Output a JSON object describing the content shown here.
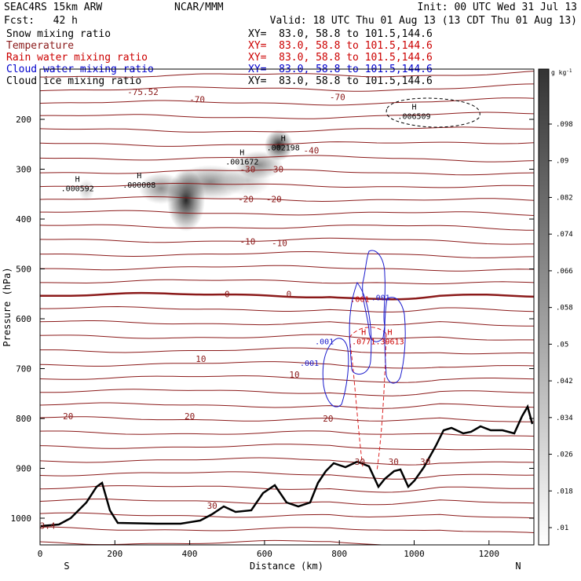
{
  "header": {
    "model": "SEAC4RS 15km ARW",
    "center": "NCAR/MMM",
    "init": "Init: 00 UTC Wed 31 Jul 13",
    "fcst": "Fcst:   42 h",
    "valid": "Valid: 18 UTC Thu 01 Aug 13 (13 CDT Thu 01 Aug 13)"
  },
  "legend": [
    {
      "name": "Snow mixing ratio",
      "xy": "XY=  83.0, 58.8 to 101.5,144.6",
      "color": "#000000"
    },
    {
      "name": "Temperature",
      "xy": "XY=  83.0, 58.8 to 101.5,144.6",
      "color": "#8b1a1a"
    },
    {
      "name": "Rain water mixing ratio",
      "xy": "XY=  83.0, 58.8 to 101.5,144.6",
      "color": "#cc0000"
    },
    {
      "name": "Cloud water mixing ratio",
      "xy": "XY=  83.0, 58.8 to 101.5,144.6",
      "color": "#0000cc"
    },
    {
      "name": "Cloud ice mixing ratio",
      "xy": "XY=  83.0, 58.8 to 101.5,144.6",
      "color": "#000000"
    }
  ],
  "chart_data": {
    "type": "cross-section",
    "xlabel": "Distance (km)",
    "ylabel": "Pressure (hPa)",
    "xlim": [
      0,
      1320
    ],
    "ylim": [
      1050,
      100
    ],
    "x_ticks": [
      "0",
      "200",
      "400",
      "600",
      "800",
      "1000",
      "1200"
    ],
    "y_ticks": [
      "200",
      "300",
      "400",
      "500",
      "600",
      "700",
      "800",
      "900",
      "1000"
    ],
    "left_endpoint": "S",
    "right_endpoint": "N",
    "colorbar": {
      "unit": "g kg",
      "unit_exp": "-1",
      "labels": [
        ".01",
        ".018",
        ".026",
        ".034",
        ".042",
        ".05",
        ".058",
        ".066",
        ".074",
        ".082",
        ".09",
        ".098"
      ]
    },
    "temperature_labels": [
      {
        "text": "-70",
        "x": 420,
        "p": 160
      },
      {
        "text": "-70",
        "x": 795,
        "p": 155
      },
      {
        "text": "-75.52",
        "x": 275,
        "p": 145
      },
      {
        "text": "-40",
        "x": 725,
        "p": 262
      },
      {
        "text": "-30",
        "x": 555,
        "p": 300
      },
      {
        "text": "-30",
        "x": 630,
        "p": 300
      },
      {
        "text": "-20",
        "x": 550,
        "p": 360
      },
      {
        "text": "-20",
        "x": 625,
        "p": 360
      },
      {
        "text": "-10",
        "x": 555,
        "p": 445
      },
      {
        "text": "-10",
        "x": 640,
        "p": 448
      },
      {
        "text": "0",
        "x": 500,
        "p": 550
      },
      {
        "text": "0",
        "x": 665,
        "p": 550
      },
      {
        "text": "10",
        "x": 430,
        "p": 680
      },
      {
        "text": "10",
        "x": 680,
        "p": 712
      },
      {
        "text": "20",
        "x": 75,
        "p": 795
      },
      {
        "text": "20",
        "x": 400,
        "p": 795
      },
      {
        "text": "20",
        "x": 770,
        "p": 800
      },
      {
        "text": "30",
        "x": 460,
        "p": 975
      },
      {
        "text": "30",
        "x": 855,
        "p": 887
      },
      {
        "text": "30",
        "x": 945,
        "p": 887
      },
      {
        "text": "30",
        "x": 1030,
        "p": 887
      },
      {
        "text": "3.4",
        "x": 20,
        "p": 1015
      }
    ],
    "maxima": [
      {
        "mark": "H",
        "value": ".000592",
        "x": 100,
        "p": 325
      },
      {
        "mark": "H",
        "value": ".000008",
        "x": 265,
        "p": 318
      },
      {
        "mark": "H",
        "value": ".001672",
        "x": 540,
        "p": 272
      },
      {
        "mark": "H",
        "value": ".002198",
        "x": 650,
        "p": 243
      },
      {
        "mark": "H",
        "value": ".006509",
        "x": 1000,
        "p": 180
      },
      {
        "mark": "H",
        "value": ".0771",
        "x": 865,
        "p": 632
      },
      {
        "mark": "H",
        "value": ".39613",
        "x": 935,
        "p": 632
      }
    ],
    "cloud_water_labels": [
      {
        "text": ".001",
        "x": 910,
        "p": 557
      },
      {
        "text": ".001",
        "x": 760,
        "p": 645
      },
      {
        "text": ".001",
        "x": 720,
        "p": 688
      }
    ],
    "rain_labels": [
      {
        "text": ".001",
        "x": 855,
        "p": 560
      }
    ]
  }
}
